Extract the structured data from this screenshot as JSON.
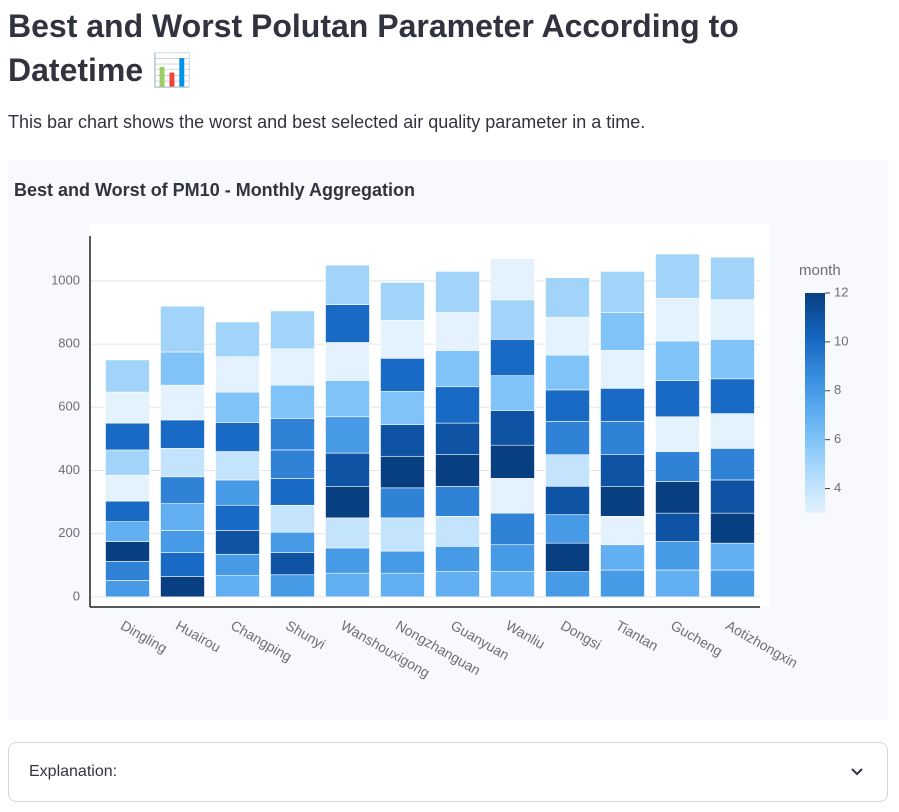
{
  "header": {
    "title": "Best and Worst Polutan Parameter According to Datetime 📊",
    "description": "This bar chart shows the worst and best selected air quality parameter in a time."
  },
  "chart_data": {
    "type": "stacked-color-bar",
    "title": "Best and Worst of PM10 - Monthly Aggregation",
    "categories": [
      "Dingling",
      "Huairou",
      "Changping",
      "Shunyi",
      "Wanshouxigong",
      "Nongzhanguan",
      "Guanyuan",
      "Wanliu",
      "Dongsi",
      "Tiantan",
      "Gucheng",
      "Aotizhongxin"
    ],
    "segments": [
      [
        {
          "month": 8,
          "value": 52
        },
        {
          "month": 9,
          "value": 60
        },
        {
          "month": 12,
          "value": 63
        },
        {
          "month": 7,
          "value": 63
        },
        {
          "month": 10,
          "value": 65
        },
        {
          "month": 3,
          "value": 82
        },
        {
          "month": 5,
          "value": 80
        },
        {
          "month": 10,
          "value": 85
        },
        {
          "month": 3,
          "value": 98
        },
        {
          "month": 5,
          "value": 102
        }
      ],
      [
        {
          "month": 12,
          "value": 65
        },
        {
          "month": 10,
          "value": 75
        },
        {
          "month": 8,
          "value": 70
        },
        {
          "month": 7,
          "value": 85
        },
        {
          "month": 9,
          "value": 85
        },
        {
          "month": 4,
          "value": 90
        },
        {
          "month": 10,
          "value": 90
        },
        {
          "month": 3,
          "value": 110
        },
        {
          "month": 6,
          "value": 105
        },
        {
          "month": 5,
          "value": 145
        }
      ],
      [
        {
          "month": 7,
          "value": 67
        },
        {
          "month": 8,
          "value": 68
        },
        {
          "month": 11,
          "value": 75
        },
        {
          "month": 10,
          "value": 80
        },
        {
          "month": 8,
          "value": 80
        },
        {
          "month": 4,
          "value": 90
        },
        {
          "month": 10,
          "value": 92
        },
        {
          "month": 6,
          "value": 96
        },
        {
          "month": 3,
          "value": 112
        },
        {
          "month": 5,
          "value": 110
        }
      ],
      [
        {
          "month": 8,
          "value": 70
        },
        {
          "month": 11,
          "value": 70
        },
        {
          "month": 8,
          "value": 65
        },
        {
          "month": 4,
          "value": 85
        },
        {
          "month": 10,
          "value": 85
        },
        {
          "month": 9,
          "value": 90
        },
        {
          "month": 9,
          "value": 100
        },
        {
          "month": 6,
          "value": 105
        },
        {
          "month": 3,
          "value": 115
        },
        {
          "month": 5,
          "value": 120
        }
      ],
      [
        {
          "month": 7,
          "value": 75
        },
        {
          "month": 8,
          "value": 80
        },
        {
          "month": 4,
          "value": 95
        },
        {
          "month": 12,
          "value": 100
        },
        {
          "month": 11,
          "value": 105
        },
        {
          "month": 8,
          "value": 115
        },
        {
          "month": 6,
          "value": 115
        },
        {
          "month": 3,
          "value": 120
        },
        {
          "month": 10,
          "value": 120
        },
        {
          "month": 5,
          "value": 125
        }
      ],
      [
        {
          "month": 7,
          "value": 75
        },
        {
          "month": 8,
          "value": 70
        },
        {
          "month": 4,
          "value": 105
        },
        {
          "month": 9,
          "value": 95
        },
        {
          "month": 12,
          "value": 100
        },
        {
          "month": 11,
          "value": 100
        },
        {
          "month": 6,
          "value": 105
        },
        {
          "month": 10,
          "value": 105
        },
        {
          "month": 3,
          "value": 120
        },
        {
          "month": 5,
          "value": 120
        }
      ],
      [
        {
          "month": 7,
          "value": 80
        },
        {
          "month": 8,
          "value": 80
        },
        {
          "month": 4,
          "value": 95
        },
        {
          "month": 9,
          "value": 95
        },
        {
          "month": 12,
          "value": 100
        },
        {
          "month": 11,
          "value": 100
        },
        {
          "month": 10,
          "value": 115
        },
        {
          "month": 6,
          "value": 115
        },
        {
          "month": 3,
          "value": 120
        },
        {
          "month": 5,
          "value": 130
        }
      ],
      [
        {
          "month": 7,
          "value": 80
        },
        {
          "month": 8,
          "value": 85
        },
        {
          "month": 9,
          "value": 100
        },
        {
          "month": 3,
          "value": 110
        },
        {
          "month": 12,
          "value": 105
        },
        {
          "month": 11,
          "value": 110
        },
        {
          "month": 6,
          "value": 110
        },
        {
          "month": 10,
          "value": 115
        },
        {
          "month": 5,
          "value": 125
        },
        {
          "month": 3,
          "value": 130
        }
      ],
      [
        {
          "month": 8,
          "value": 80
        },
        {
          "month": 12,
          "value": 90
        },
        {
          "month": 8,
          "value": 90
        },
        {
          "month": 11,
          "value": 90
        },
        {
          "month": 4,
          "value": 100
        },
        {
          "month": 9,
          "value": 105
        },
        {
          "month": 10,
          "value": 100
        },
        {
          "month": 6,
          "value": 110
        },
        {
          "month": 3,
          "value": 120
        },
        {
          "month": 5,
          "value": 125
        }
      ],
      [
        {
          "month": 8,
          "value": 85
        },
        {
          "month": 7,
          "value": 80
        },
        {
          "month": 3,
          "value": 90
        },
        {
          "month": 12,
          "value": 95
        },
        {
          "month": 11,
          "value": 100
        },
        {
          "month": 9,
          "value": 105
        },
        {
          "month": 10,
          "value": 105
        },
        {
          "month": 3,
          "value": 120
        },
        {
          "month": 6,
          "value": 120
        },
        {
          "month": 5,
          "value": 130
        }
      ],
      [
        {
          "month": 7,
          "value": 85
        },
        {
          "month": 8,
          "value": 90
        },
        {
          "month": 11,
          "value": 90
        },
        {
          "month": 12,
          "value": 100
        },
        {
          "month": 9,
          "value": 95
        },
        {
          "month": 3,
          "value": 110
        },
        {
          "month": 10,
          "value": 115
        },
        {
          "month": 6,
          "value": 125
        },
        {
          "month": 3,
          "value": 135
        },
        {
          "month": 5,
          "value": 140
        }
      ],
      [
        {
          "month": 8,
          "value": 85
        },
        {
          "month": 7,
          "value": 85
        },
        {
          "month": 12,
          "value": 95
        },
        {
          "month": 11,
          "value": 105
        },
        {
          "month": 9,
          "value": 100
        },
        {
          "month": 3,
          "value": 110
        },
        {
          "month": 10,
          "value": 110
        },
        {
          "month": 6,
          "value": 125
        },
        {
          "month": 3,
          "value": 125
        },
        {
          "month": 5,
          "value": 135
        }
      ]
    ],
    "ylim": [
      -32,
      1142
    ],
    "yticks": [
      0,
      200,
      400,
      600,
      800,
      1000
    ],
    "grid": true,
    "colorbar_title": "month",
    "colorbar_range": [
      3,
      12
    ],
    "colorbar_ticks": [
      4,
      6,
      8,
      10,
      12
    ],
    "colorscale": [
      "#e3f2fd",
      "#a9d8fb",
      "#6cb8f6",
      "#3d91e2",
      "#1565c0",
      "#083f80"
    ]
  },
  "expander": {
    "label": "Explanation:"
  }
}
